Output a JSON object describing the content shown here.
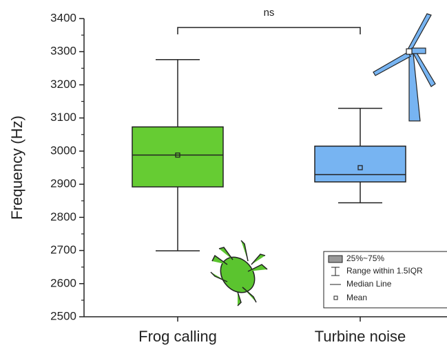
{
  "chart_data": {
    "type": "box",
    "y_label": "Frequency (Hz)",
    "categories": [
      "Frog calling",
      "Turbine noise"
    ],
    "boxes": [
      {
        "whisker_low": 2699,
        "q1": 2892,
        "median": 2988,
        "q3": 3073,
        "whisker_high": 3276,
        "mean": 2988,
        "color": "#66cc33"
      },
      {
        "whisker_low": 2844,
        "q1": 2907,
        "median": 2929,
        "q3": 3015,
        "whisker_high": 3129,
        "mean": 2950,
        "color": "#77b4f2"
      }
    ],
    "ylim": [
      2500,
      3400
    ],
    "yticks": [
      2500,
      2600,
      2700,
      2800,
      2900,
      3000,
      3100,
      3200,
      3300,
      3400
    ],
    "annotation": "ns",
    "legend": [
      "25%~75%",
      "Range within 1.5IQR",
      "Median Line",
      "Mean"
    ]
  }
}
